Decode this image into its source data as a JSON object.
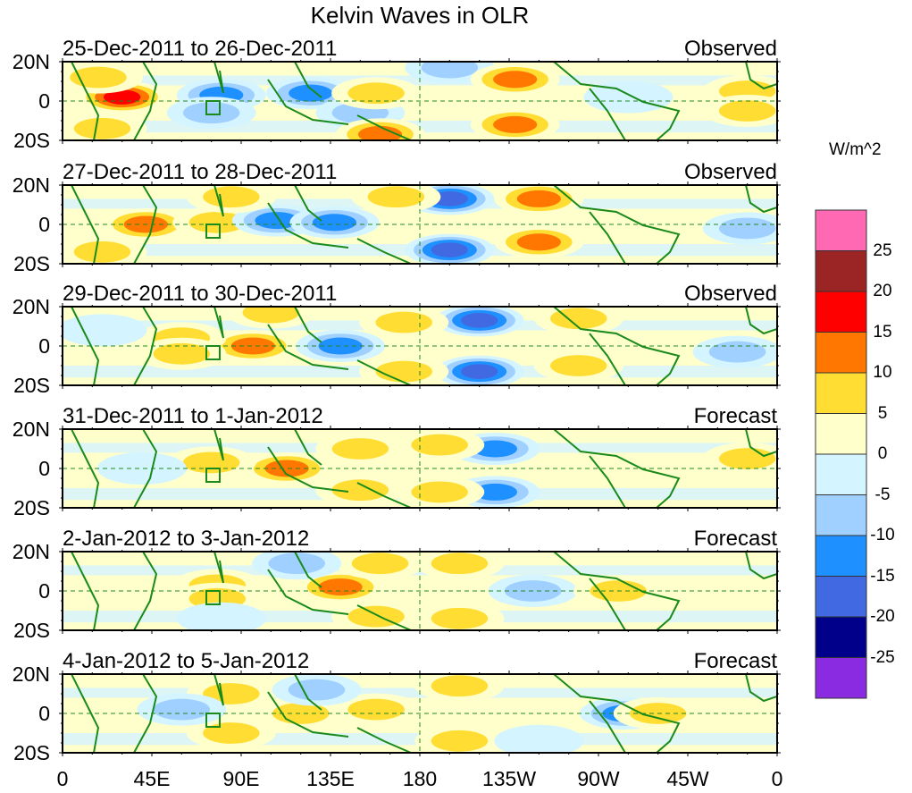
{
  "chart_data": {
    "type": "heatmap",
    "title": "Kelvin Waves in OLR",
    "colorbar": {
      "unit_label": "W/m^2",
      "levels": [
        -25,
        -20,
        -15,
        -10,
        -5,
        0,
        5,
        10,
        15,
        20,
        25
      ],
      "tick_labels": [
        "25",
        "20",
        "15",
        "10",
        "5",
        "0",
        "-5",
        "-10",
        "-15",
        "-20",
        "-25"
      ],
      "colors_bottom_to_top": [
        "#8a2be2",
        "#00008b",
        "#4169e1",
        "#1e90ff",
        "#a0d0ff",
        "#d4f4ff",
        "#ffffcc",
        "#ffdd33",
        "#ff7700",
        "#ff0000",
        "#9b2424",
        "#ff69b4"
      ]
    },
    "x_axis": {
      "tick_labels": [
        "0",
        "45E",
        "90E",
        "135E",
        "180",
        "135W",
        "90W",
        "45W",
        "0"
      ],
      "range_deg_east": [
        0,
        360
      ]
    },
    "y_axis": {
      "tick_labels": [
        "20N",
        "0",
        "20S"
      ],
      "range_deg": [
        -20,
        20
      ]
    },
    "panels": [
      {
        "period": "25-Dec-2011 to 26-Dec-2011",
        "kind": "Observed",
        "anomalies": [
          {
            "lon": 30,
            "lat": 2,
            "value": 18
          },
          {
            "lon": 18,
            "lat": 12,
            "value": 8
          },
          {
            "lon": 20,
            "lat": -14,
            "value": 7
          },
          {
            "lon": 80,
            "lat": 3,
            "value": -14
          },
          {
            "lon": 75,
            "lat": -6,
            "value": -8
          },
          {
            "lon": 125,
            "lat": 4,
            "value": -11
          },
          {
            "lon": 150,
            "lat": -6,
            "value": -7
          },
          {
            "lon": 158,
            "lat": 4,
            "value": 6
          },
          {
            "lon": 195,
            "lat": 17,
            "value": -7
          },
          {
            "lon": 228,
            "lat": 11,
            "value": 13
          },
          {
            "lon": 228,
            "lat": -12,
            "value": 13
          },
          {
            "lon": 285,
            "lat": 2,
            "value": -4
          },
          {
            "lon": 345,
            "lat": 5,
            "value": 6
          },
          {
            "lon": 345,
            "lat": -5,
            "value": 6
          },
          {
            "lon": 160,
            "lat": -17,
            "value": 11
          }
        ]
      },
      {
        "period": "27-Dec-2011 to 28-Dec-2011",
        "kind": "Observed",
        "anomalies": [
          {
            "lon": 42,
            "lat": 0,
            "value": 13
          },
          {
            "lon": 78,
            "lat": 1,
            "value": 10
          },
          {
            "lon": 108,
            "lat": 2,
            "value": -14
          },
          {
            "lon": 137,
            "lat": 1,
            "value": -13
          },
          {
            "lon": 195,
            "lat": 13,
            "value": -17
          },
          {
            "lon": 195,
            "lat": -13,
            "value": -17
          },
          {
            "lon": 240,
            "lat": 13,
            "value": 12
          },
          {
            "lon": 240,
            "lat": -9,
            "value": 12
          },
          {
            "lon": 168,
            "lat": 14,
            "value": 7
          },
          {
            "lon": 20,
            "lat": -14,
            "value": 6
          },
          {
            "lon": 345,
            "lat": -2,
            "value": -7
          },
          {
            "lon": 85,
            "lat": 14,
            "value": 7
          }
        ]
      },
      {
        "period": "29-Dec-2011 to 30-Dec-2011",
        "kind": "Observed",
        "anomalies": [
          {
            "lon": 96,
            "lat": 0,
            "value": 13
          },
          {
            "lon": 60,
            "lat": 4,
            "value": 6
          },
          {
            "lon": 60,
            "lat": -4,
            "value": 6
          },
          {
            "lon": 140,
            "lat": 0,
            "value": -13
          },
          {
            "lon": 210,
            "lat": 13,
            "value": -17
          },
          {
            "lon": 210,
            "lat": -13,
            "value": -17
          },
          {
            "lon": 172,
            "lat": 12,
            "value": 9
          },
          {
            "lon": 172,
            "lat": -13,
            "value": 9
          },
          {
            "lon": 260,
            "lat": 14,
            "value": 7
          },
          {
            "lon": 260,
            "lat": -10,
            "value": 6
          },
          {
            "lon": 20,
            "lat": 8,
            "value": -5
          },
          {
            "lon": 340,
            "lat": -3,
            "value": -6
          },
          {
            "lon": 105,
            "lat": 17,
            "value": 7
          }
        ]
      },
      {
        "period": "31-Dec-2011 to 1-Jan-2012",
        "kind": "Forecast",
        "anomalies": [
          {
            "lon": 113,
            "lat": 0,
            "value": 13
          },
          {
            "lon": 150,
            "lat": 10,
            "value": 9
          },
          {
            "lon": 150,
            "lat": -11,
            "value": 9
          },
          {
            "lon": 75,
            "lat": 3,
            "value": 6
          },
          {
            "lon": 218,
            "lat": 10,
            "value": -11
          },
          {
            "lon": 218,
            "lat": -12,
            "value": -11
          },
          {
            "lon": 190,
            "lat": 12,
            "value": 7
          },
          {
            "lon": 190,
            "lat": -12,
            "value": 7
          },
          {
            "lon": 270,
            "lat": 0,
            "value": 5
          },
          {
            "lon": 40,
            "lat": 0,
            "value": -5
          },
          {
            "lon": 345,
            "lat": 5,
            "value": 6
          }
        ]
      },
      {
        "period": "2-Jan-2012 to 3-Jan-2012",
        "kind": "Forecast",
        "anomalies": [
          {
            "lon": 140,
            "lat": 2,
            "value": 11
          },
          {
            "lon": 158,
            "lat": -13,
            "value": 9
          },
          {
            "lon": 160,
            "lat": 14,
            "value": 9
          },
          {
            "lon": 78,
            "lat": 3,
            "value": 6
          },
          {
            "lon": 78,
            "lat": -4,
            "value": 6
          },
          {
            "lon": 118,
            "lat": 14,
            "value": -6
          },
          {
            "lon": 237,
            "lat": 0,
            "value": -7
          },
          {
            "lon": 200,
            "lat": 14,
            "value": 7
          },
          {
            "lon": 200,
            "lat": -14,
            "value": 7
          },
          {
            "lon": 280,
            "lat": 0,
            "value": 6
          },
          {
            "lon": 80,
            "lat": -14,
            "value": -5
          }
        ]
      },
      {
        "period": "4-Jan-2012 to 5-Jan-2012",
        "kind": "Forecast",
        "anomalies": [
          {
            "lon": 283,
            "lat": 0,
            "value": -11
          },
          {
            "lon": 85,
            "lat": 10,
            "value": 6
          },
          {
            "lon": 85,
            "lat": -10,
            "value": 6
          },
          {
            "lon": 120,
            "lat": 0,
            "value": 6
          },
          {
            "lon": 200,
            "lat": 14,
            "value": 9
          },
          {
            "lon": 200,
            "lat": -14,
            "value": 9
          },
          {
            "lon": 158,
            "lat": 2,
            "value": 6
          },
          {
            "lon": 60,
            "lat": 2,
            "value": -6
          },
          {
            "lon": 128,
            "lat": 12,
            "value": -6
          },
          {
            "lon": 300,
            "lat": 0,
            "value": 6
          },
          {
            "lon": 240,
            "lat": -14,
            "value": -5
          }
        ]
      }
    ]
  }
}
